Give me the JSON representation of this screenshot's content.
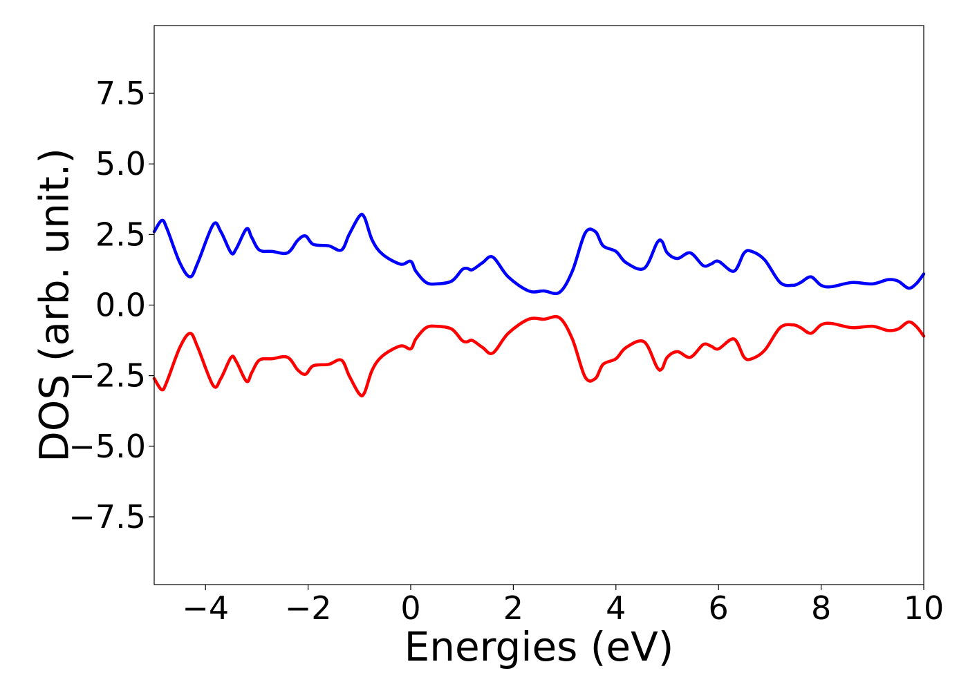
{
  "chart_data": {
    "type": "line",
    "title": "",
    "xlabel": "Energies (eV)",
    "ylabel": "DOS (arb. unit.)",
    "xlim": [
      -5,
      10
    ],
    "ylim": [
      -9.9,
      9.9
    ],
    "x_ticks": [
      -4,
      -2,
      0,
      2,
      4,
      6,
      8,
      10
    ],
    "x_tick_labels": [
      "−4",
      "−2",
      "0",
      "2",
      "4",
      "6",
      "8",
      "10"
    ],
    "y_ticks": [
      -7.5,
      -5.0,
      -2.5,
      0.0,
      2.5,
      5.0,
      7.5
    ],
    "y_tick_labels": [
      "−7.5",
      "−5.0",
      "−2.5",
      "0.0",
      "2.5",
      "5.0",
      "7.5"
    ],
    "grid": false,
    "series": [
      {
        "color": "#0000ff",
        "x": [
          -5.0,
          -4.85,
          -4.75,
          -4.5,
          -4.3,
          -4.15,
          -3.85,
          -3.7,
          -3.5,
          -3.4,
          -3.2,
          -3.1,
          -2.95,
          -2.7,
          -2.4,
          -2.2,
          -2.05,
          -1.9,
          -1.6,
          -1.35,
          -1.2,
          -1.0,
          -0.9,
          -0.75,
          -0.55,
          -0.2,
          0.0,
          0.1,
          0.3,
          0.5,
          0.8,
          1.0,
          1.1,
          1.2,
          1.4,
          1.6,
          1.9,
          2.3,
          2.6,
          2.9,
          3.15,
          3.4,
          3.6,
          3.75,
          4.0,
          4.2,
          4.55,
          4.8,
          4.9,
          5.0,
          5.2,
          5.45,
          5.7,
          5.85,
          6.0,
          6.3,
          6.5,
          6.65,
          6.9,
          7.2,
          7.45,
          7.6,
          7.8,
          8.0,
          8.2,
          8.6,
          9.0,
          9.3,
          9.5,
          9.7,
          9.85,
          10.0
        ],
        "y": [
          2.6,
          3.0,
          2.7,
          1.5,
          1.0,
          1.5,
          2.85,
          2.6,
          1.85,
          2.0,
          2.7,
          2.4,
          1.95,
          1.9,
          1.85,
          2.3,
          2.45,
          2.15,
          2.1,
          1.95,
          2.5,
          3.15,
          3.1,
          2.3,
          1.8,
          1.45,
          1.55,
          1.2,
          0.8,
          0.75,
          0.85,
          1.25,
          1.3,
          1.25,
          1.5,
          1.7,
          1.0,
          0.5,
          0.5,
          0.45,
          1.2,
          2.55,
          2.6,
          2.1,
          1.9,
          1.5,
          1.3,
          2.2,
          2.25,
          1.85,
          1.65,
          1.85,
          1.4,
          1.45,
          1.55,
          1.2,
          1.85,
          1.9,
          1.6,
          0.8,
          0.7,
          0.8,
          1.0,
          0.7,
          0.65,
          0.8,
          0.75,
          0.9,
          0.85,
          0.6,
          0.75,
          1.1
        ]
      },
      {
        "color": "#ff0000",
        "x": [
          -5.0,
          -4.85,
          -4.75,
          -4.5,
          -4.3,
          -4.15,
          -3.85,
          -3.7,
          -3.5,
          -3.4,
          -3.2,
          -3.1,
          -2.95,
          -2.7,
          -2.4,
          -2.2,
          -2.05,
          -1.9,
          -1.6,
          -1.35,
          -1.2,
          -1.0,
          -0.9,
          -0.75,
          -0.55,
          -0.2,
          0.0,
          0.1,
          0.3,
          0.5,
          0.8,
          1.0,
          1.1,
          1.2,
          1.4,
          1.6,
          1.9,
          2.3,
          2.6,
          2.9,
          3.15,
          3.4,
          3.6,
          3.75,
          4.0,
          4.2,
          4.55,
          4.8,
          4.9,
          5.0,
          5.2,
          5.45,
          5.7,
          5.85,
          6.0,
          6.3,
          6.5,
          6.65,
          6.9,
          7.2,
          7.45,
          7.6,
          7.8,
          8.0,
          8.2,
          8.6,
          9.0,
          9.3,
          9.5,
          9.7,
          9.85,
          10.0
        ],
        "y": [
          -2.6,
          -3.0,
          -2.7,
          -1.5,
          -1.0,
          -1.5,
          -2.85,
          -2.6,
          -1.85,
          -2.0,
          -2.7,
          -2.4,
          -1.95,
          -1.9,
          -1.85,
          -2.3,
          -2.45,
          -2.15,
          -2.1,
          -1.95,
          -2.5,
          -3.15,
          -3.1,
          -2.3,
          -1.8,
          -1.45,
          -1.55,
          -1.2,
          -0.8,
          -0.75,
          -0.85,
          -1.25,
          -1.3,
          -1.25,
          -1.5,
          -1.7,
          -1.0,
          -0.5,
          -0.5,
          -0.45,
          -1.2,
          -2.55,
          -2.6,
          -2.1,
          -1.9,
          -1.5,
          -1.3,
          -2.2,
          -2.25,
          -1.85,
          -1.65,
          -1.85,
          -1.4,
          -1.45,
          -1.55,
          -1.2,
          -1.85,
          -1.9,
          -1.6,
          -0.8,
          -0.7,
          -0.8,
          -1.0,
          -0.7,
          -0.65,
          -0.8,
          -0.75,
          -0.9,
          -0.85,
          -0.6,
          -0.75,
          -1.1
        ]
      }
    ]
  }
}
